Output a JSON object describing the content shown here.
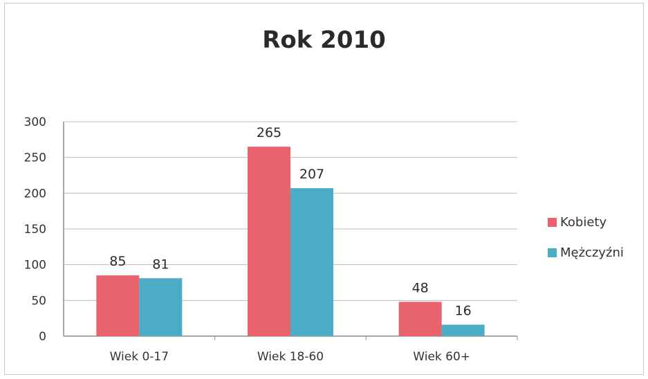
{
  "chart_data": {
    "type": "bar",
    "title": "Rok 2010",
    "xlabel": "",
    "ylabel": "",
    "categories": [
      "Wiek 0-17",
      "Wiek 18-60",
      "Wiek 60+"
    ],
    "series": [
      {
        "name": "Kobiety",
        "values": [
          85,
          265,
          48
        ],
        "color": "#e8636e"
      },
      {
        "name": "Mężczyźni",
        "values": [
          81,
          207,
          16
        ],
        "color": "#4bacc6"
      }
    ],
    "ylim": [
      0,
      300
    ],
    "yticks": [
      0,
      50,
      100,
      150,
      200,
      250,
      300
    ],
    "grid": true,
    "legend": "right",
    "data_labels": true
  }
}
